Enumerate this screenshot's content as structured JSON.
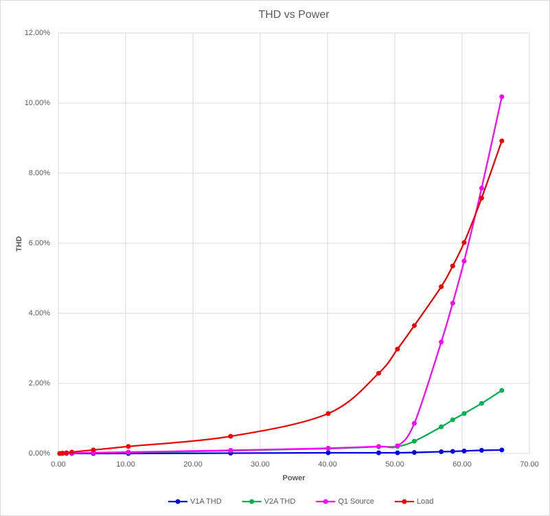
{
  "chart_data": {
    "type": "scatter",
    "title": "THD vs Power",
    "x_label": "Power",
    "y_label": "THD",
    "x": [
      0.2,
      0.6,
      1.2,
      2.0,
      5.2,
      10.4,
      25.6,
      40.1,
      47.6,
      50.4,
      52.9,
      56.9,
      58.6,
      60.3,
      62.9,
      65.9
    ],
    "series": [
      {
        "name": "V1A THD",
        "color": "#0000e0",
        "values": [
          0,
          0,
          0,
          0,
          0,
          0,
          0.01,
          0.02,
          0.02,
          0.02,
          0.03,
          0.05,
          0.06,
          0.07,
          0.09,
          0.1
        ]
      },
      {
        "name": "V2A THD",
        "color": "#00b050",
        "values": [
          0,
          0,
          0.005,
          0.01,
          0.02,
          0.03,
          0.08,
          0.14,
          0.19,
          0.2,
          0.35,
          0.76,
          0.96,
          1.14,
          1.43,
          1.8
        ]
      },
      {
        "name": "Q1 Source",
        "color": "#ff00ff",
        "values": [
          0,
          0.005,
          0.01,
          0.01,
          0.02,
          0.04,
          0.09,
          0.15,
          0.2,
          0.22,
          0.86,
          3.18,
          4.29,
          5.49,
          7.57,
          10.18
        ]
      },
      {
        "name": "Load",
        "color": "#ee0000",
        "values": [
          0,
          0.01,
          0.02,
          0.04,
          0.1,
          0.2,
          0.49,
          1.14,
          2.29,
          2.98,
          3.65,
          4.76,
          5.35,
          6.02,
          7.29,
          8.92
        ]
      }
    ],
    "xlim": [
      0,
      70
    ],
    "xticks": [
      {
        "value": 0,
        "label": "0.00"
      },
      {
        "value": 10,
        "label": "10.00"
      },
      {
        "value": 20,
        "label": "20.00"
      },
      {
        "value": 30,
        "label": "30.00"
      },
      {
        "value": 40,
        "label": "40.00"
      },
      {
        "value": 50,
        "label": "50.00"
      },
      {
        "value": 60,
        "label": "60.00"
      },
      {
        "value": 70,
        "label": "70.00"
      }
    ],
    "ylim": [
      0,
      12
    ],
    "yticks": [
      {
        "value": 0,
        "label": "0.00%"
      },
      {
        "value": 2,
        "label": "2.00%"
      },
      {
        "value": 4,
        "label": "4.00%"
      },
      {
        "value": 6,
        "label": "6.00%"
      },
      {
        "value": 8,
        "label": "8.00%"
      },
      {
        "value": 10,
        "label": "10.00%"
      },
      {
        "value": 12,
        "label": "12.00%"
      }
    ],
    "grid": true,
    "smooth": true,
    "legend": "bottom"
  }
}
